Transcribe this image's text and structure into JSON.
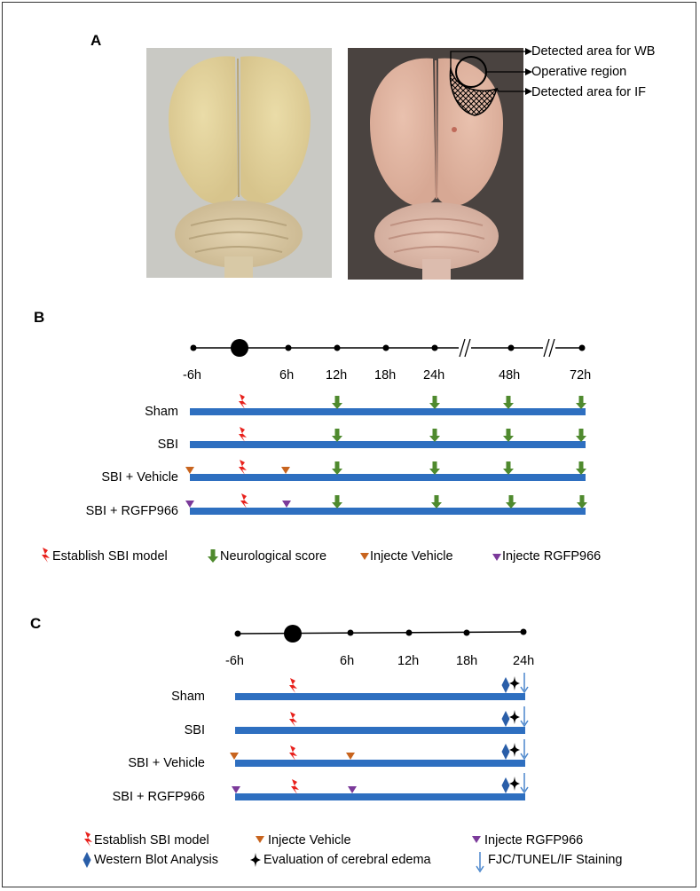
{
  "panels": {
    "a": {
      "letter": "A",
      "annotations": [
        "Detected area for WB",
        "Operative region",
        "Detected area for IF"
      ]
    },
    "b": {
      "letter": "B",
      "ticks": [
        "-6h",
        "6h",
        "12h",
        "18h",
        "24h",
        "48h",
        "72h"
      ],
      "groups": [
        "Sham",
        "SBI",
        "SBI + Vehicle",
        "SBI + RGFP966"
      ],
      "legend": [
        "Establish SBI model",
        "Neurological score",
        "Injecte Vehicle",
        "Injecte RGFP966"
      ]
    },
    "c": {
      "letter": "C",
      "ticks": [
        "-6h",
        "6h",
        "12h",
        "18h",
        "24h"
      ],
      "groups": [
        "Sham",
        "SBI",
        "SBI + Vehicle",
        "SBI + RGFP966"
      ],
      "legend": [
        "Establish SBI model",
        "Injecte Vehicle",
        "Injecte RGFP966",
        "Western Blot Analysis",
        "Evaluation of cerebral edema",
        "FJC/TUNEL/IF Staining"
      ]
    }
  },
  "colors": {
    "bar": "#2e6fc0",
    "lightning": "#e8211c",
    "score_arrow": "#4f8a2e",
    "vehicle": "#c8641e",
    "rgfp": "#7b3a9a",
    "wb": "#2a5ea8",
    "staining": "#4a86cc"
  }
}
